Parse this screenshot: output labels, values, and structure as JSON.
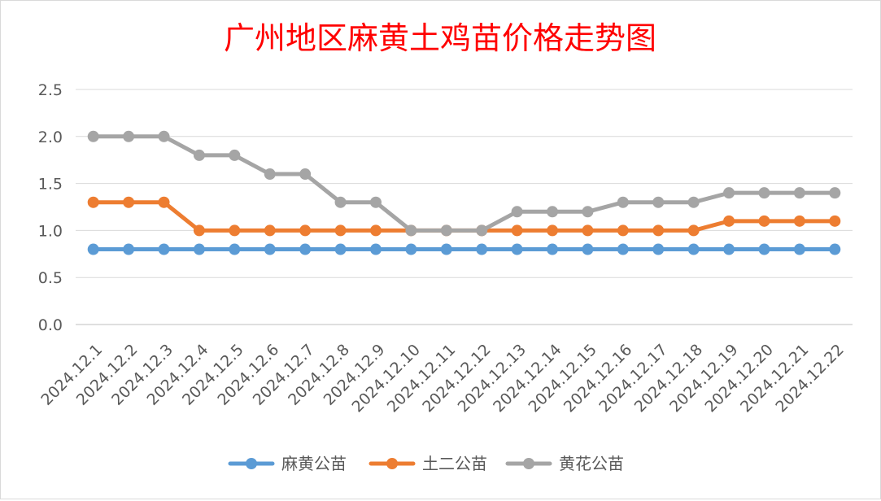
{
  "chart_data": {
    "type": "line",
    "title": "广州地区麻黄土鸡苗价格走势图",
    "xlabel": "",
    "ylabel": "",
    "categories": [
      "2024.12.1",
      "2024.12.2",
      "2024.12.3",
      "2024.12.4",
      "2024.12.5",
      "2024.12.6",
      "2024.12.7",
      "2024.12.8",
      "2024.12.9",
      "2024.12.10",
      "2024.12.11",
      "2024.12.12",
      "2024.12.13",
      "2024.12.14",
      "2024.12.15",
      "2024.12.16",
      "2024.12.17",
      "2024.12.18",
      "2024.12.19",
      "2024.12.20",
      "2024.12.21",
      "2024.12.22"
    ],
    "ylim": [
      0,
      2.5
    ],
    "yticks": [
      "0.0",
      "0.5",
      "1.0",
      "1.5",
      "2.0",
      "2.5"
    ],
    "grid": true,
    "legend_position": "bottom",
    "series": [
      {
        "name": "麻黄公苗",
        "color": "#5b9bd5",
        "values": [
          0.8,
          0.8,
          0.8,
          0.8,
          0.8,
          0.8,
          0.8,
          0.8,
          0.8,
          0.8,
          0.8,
          0.8,
          0.8,
          0.8,
          0.8,
          0.8,
          0.8,
          0.8,
          0.8,
          0.8,
          0.8,
          0.8
        ]
      },
      {
        "name": "土二公苗",
        "color": "#ed7d31",
        "values": [
          1.3,
          1.3,
          1.3,
          1.0,
          1.0,
          1.0,
          1.0,
          1.0,
          1.0,
          1.0,
          1.0,
          1.0,
          1.0,
          1.0,
          1.0,
          1.0,
          1.0,
          1.0,
          1.1,
          1.1,
          1.1,
          1.1
        ]
      },
      {
        "name": "黄花公苗",
        "color": "#a5a5a5",
        "values": [
          2.0,
          2.0,
          2.0,
          1.8,
          1.8,
          1.6,
          1.6,
          1.3,
          1.3,
          1.0,
          1.0,
          1.0,
          1.2,
          1.2,
          1.2,
          1.3,
          1.3,
          1.3,
          1.4,
          1.4,
          1.4,
          1.4
        ]
      }
    ]
  }
}
